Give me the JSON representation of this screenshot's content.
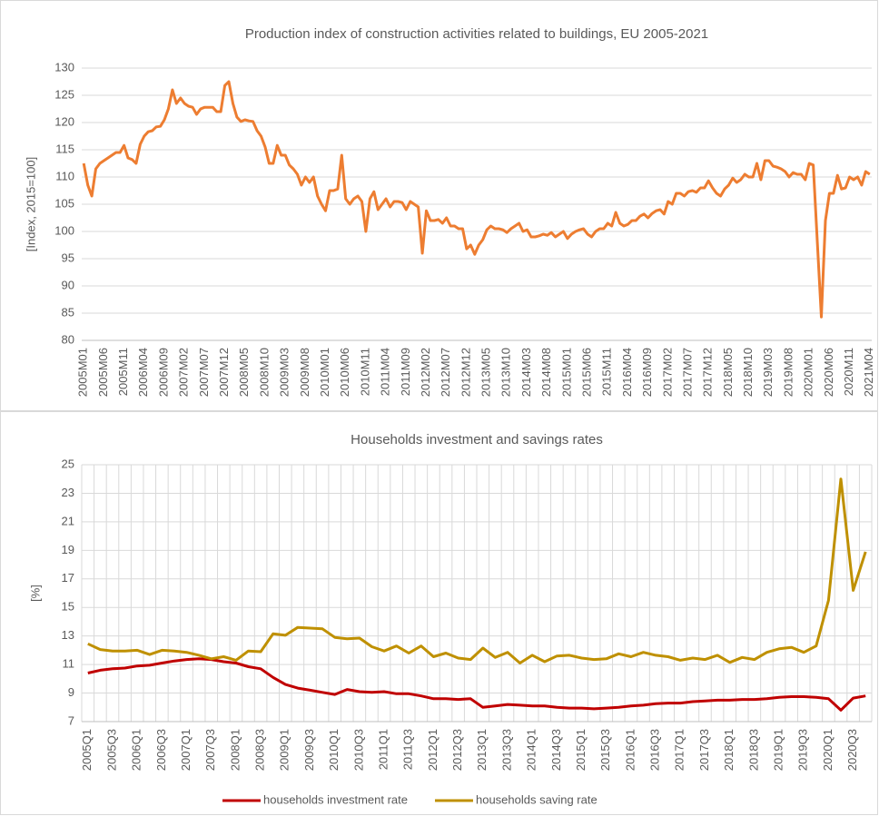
{
  "chart_data": [
    {
      "type": "line",
      "title": "Production index of construction activities related to buildings, EU 2005-2021",
      "y_label": "[Index, 2015=100]",
      "grid": "y",
      "ylim": [
        80,
        130
      ],
      "yticks": [
        80,
        85,
        90,
        95,
        100,
        105,
        110,
        115,
        120,
        125,
        130
      ],
      "categories": [
        "2005M01",
        null,
        null,
        null,
        null,
        "2005M06",
        null,
        null,
        null,
        null,
        "2005M11",
        null,
        null,
        null,
        null,
        "2006M04",
        null,
        null,
        null,
        null,
        "2006M09",
        null,
        null,
        null,
        null,
        "2007M02",
        null,
        null,
        null,
        null,
        "2007M07",
        null,
        null,
        null,
        null,
        "2007M12",
        null,
        null,
        null,
        null,
        "2008M05",
        null,
        null,
        null,
        null,
        "2008M10",
        null,
        null,
        null,
        null,
        "2009M03",
        null,
        null,
        null,
        null,
        "2009M08",
        null,
        null,
        null,
        null,
        "2010M01",
        null,
        null,
        null,
        null,
        "2010M06",
        null,
        null,
        null,
        null,
        "2010M11",
        null,
        null,
        null,
        null,
        "2011M04",
        null,
        null,
        null,
        null,
        "2011M09",
        null,
        null,
        null,
        null,
        "2012M02",
        null,
        null,
        null,
        null,
        "2012M07",
        null,
        null,
        null,
        null,
        "2012M12",
        null,
        null,
        null,
        null,
        "2013M05",
        null,
        null,
        null,
        null,
        "2013M10",
        null,
        null,
        null,
        null,
        "2014M03",
        null,
        null,
        null,
        null,
        "2014M08",
        null,
        null,
        null,
        null,
        "2015M01",
        null,
        null,
        null,
        null,
        "2015M06",
        null,
        null,
        null,
        null,
        "2015M11",
        null,
        null,
        null,
        null,
        "2016M04",
        null,
        null,
        null,
        null,
        "2016M09",
        null,
        null,
        null,
        null,
        "2017M02",
        null,
        null,
        null,
        null,
        "2017M07",
        null,
        null,
        null,
        null,
        "2017M12",
        null,
        null,
        null,
        null,
        "2018M05",
        null,
        null,
        null,
        null,
        "2018M10",
        null,
        null,
        null,
        null,
        "2019M03",
        null,
        null,
        null,
        null,
        "2019M08",
        null,
        null,
        null,
        null,
        "2020M01",
        null,
        null,
        null,
        null,
        "2020M06",
        null,
        null,
        null,
        null,
        "2020M11",
        null,
        null,
        null,
        null,
        "2021M04"
      ],
      "series": [
        {
          "color": "#ed7d31",
          "values": [
            112.5,
            108.5,
            106.5,
            111.5,
            112.5,
            113,
            113.5,
            114,
            114.5,
            114.5,
            115.8,
            113.5,
            113.2,
            112.5,
            116,
            117.5,
            118.3,
            118.5,
            119.2,
            119.3,
            120.5,
            122.5,
            126,
            123.5,
            124.5,
            123.5,
            123,
            122.8,
            121.5,
            122.5,
            122.8,
            122.8,
            122.8,
            122,
            122,
            126.8,
            127.5,
            123.5,
            121,
            120.2,
            120.5,
            120.3,
            120.2,
            118.5,
            117.5,
            115.5,
            112.5,
            112.5,
            115.8,
            114,
            114,
            112.2,
            111.5,
            110.5,
            108.5,
            110,
            109,
            110,
            106.5,
            105,
            103.8,
            107.5,
            107.5,
            107.8,
            114,
            106,
            105,
            106,
            106.5,
            105.5,
            100,
            106,
            107.3,
            104,
            105,
            106,
            104.5,
            105.5,
            105.5,
            105.3,
            104,
            105.5,
            105,
            104.5,
            96,
            103.8,
            102,
            102,
            102.2,
            101.5,
            102.5,
            101,
            101,
            100.5,
            100.5,
            96.8,
            97.5,
            95.8,
            97.5,
            98.5,
            100.3,
            101,
            100.5,
            100.5,
            100.3,
            99.8,
            100.5,
            101,
            101.5,
            100,
            100.3,
            99,
            99,
            99.2,
            99.5,
            99.3,
            99.8,
            99,
            99.5,
            100,
            98.7,
            99.5,
            100,
            100.3,
            100.5,
            99.5,
            99,
            100,
            100.5,
            100.5,
            101.5,
            101,
            103.5,
            101.5,
            101,
            101.3,
            102,
            102,
            102.8,
            103.2,
            102.5,
            103.3,
            103.8,
            104,
            103.2,
            105.5,
            105,
            107,
            107,
            106.5,
            107.3,
            107.5,
            107.2,
            108,
            108,
            109.3,
            108,
            107,
            106.5,
            107.8,
            108.5,
            109.8,
            109,
            109.5,
            110.5,
            110,
            110,
            112.5,
            109.5,
            113,
            113,
            112,
            111.8,
            111.5,
            111,
            110,
            110.8,
            110.5,
            110.5,
            109.5,
            112.5,
            112.2,
            98,
            84.3,
            102,
            107,
            107,
            110.3,
            107.8,
            108,
            110,
            109.5,
            110,
            108.5,
            111,
            110.5
          ]
        }
      ]
    },
    {
      "type": "line",
      "title": "Households investment and savings rates",
      "y_label": "[%]",
      "grid": "both",
      "legend": "bottom",
      "ylim": [
        7,
        25
      ],
      "yticks": [
        7,
        9,
        11,
        13,
        15,
        17,
        19,
        21,
        23,
        25
      ],
      "categories": [
        "2005Q1",
        null,
        "2005Q3",
        null,
        "2006Q1",
        null,
        "2006Q3",
        null,
        "2007Q1",
        null,
        "2007Q3",
        null,
        "2008Q1",
        null,
        "2008Q3",
        null,
        "2009Q1",
        null,
        "2009Q3",
        null,
        "2010Q1",
        null,
        "2010Q3",
        null,
        "2011Q1",
        null,
        "2011Q3",
        null,
        "2012Q1",
        null,
        "2012Q3",
        null,
        "2013Q1",
        null,
        "2013Q3",
        null,
        "2014Q1",
        null,
        "2014Q3",
        null,
        "2015Q1",
        null,
        "2015Q3",
        null,
        "2016Q1",
        null,
        "2016Q3",
        null,
        "2017Q1",
        null,
        "2017Q3",
        null,
        "2018Q1",
        null,
        "2018Q3",
        null,
        "2019Q1",
        null,
        "2019Q3",
        null,
        "2020Q1",
        null,
        "2020Q3",
        null
      ],
      "series": [
        {
          "name": "households investment rate",
          "color": "#c00000",
          "values": [
            10.4,
            10.6,
            10.7,
            10.75,
            10.9,
            10.95,
            11.1,
            11.25,
            11.35,
            11.4,
            11.35,
            11.2,
            11.1,
            10.85,
            10.7,
            10.1,
            9.6,
            9.35,
            9.2,
            9.05,
            8.9,
            9.25,
            9.1,
            9.05,
            9.1,
            8.95,
            8.95,
            8.8,
            8.6,
            8.6,
            8.55,
            8.6,
            8.0,
            8.1,
            8.2,
            8.15,
            8.1,
            8.1,
            8.0,
            7.95,
            7.95,
            7.9,
            7.95,
            8.0,
            8.1,
            8.15,
            8.25,
            8.3,
            8.3,
            8.4,
            8.45,
            8.5,
            8.5,
            8.55,
            8.55,
            8.6,
            8.7,
            8.75,
            8.75,
            8.7,
            8.6,
            7.8,
            8.65,
            8.8
          ]
        },
        {
          "name": "households saving rate",
          "color": "#bf9000",
          "values": [
            12.45,
            12.05,
            11.95,
            11.95,
            12.0,
            11.7,
            12.0,
            11.95,
            11.85,
            11.65,
            11.4,
            11.55,
            11.3,
            11.95,
            11.9,
            13.15,
            13.05,
            13.6,
            13.55,
            13.5,
            12.9,
            12.8,
            12.85,
            12.25,
            11.95,
            12.3,
            11.8,
            12.3,
            11.55,
            11.8,
            11.45,
            11.35,
            12.15,
            11.5,
            11.85,
            11.1,
            11.65,
            11.2,
            11.6,
            11.65,
            11.45,
            11.35,
            11.4,
            11.75,
            11.55,
            11.85,
            11.65,
            11.55,
            11.3,
            11.45,
            11.35,
            11.65,
            11.15,
            11.5,
            11.35,
            11.85,
            12.1,
            12.2,
            11.85,
            12.3,
            15.5,
            24,
            16.2,
            18.9
          ]
        }
      ]
    }
  ]
}
